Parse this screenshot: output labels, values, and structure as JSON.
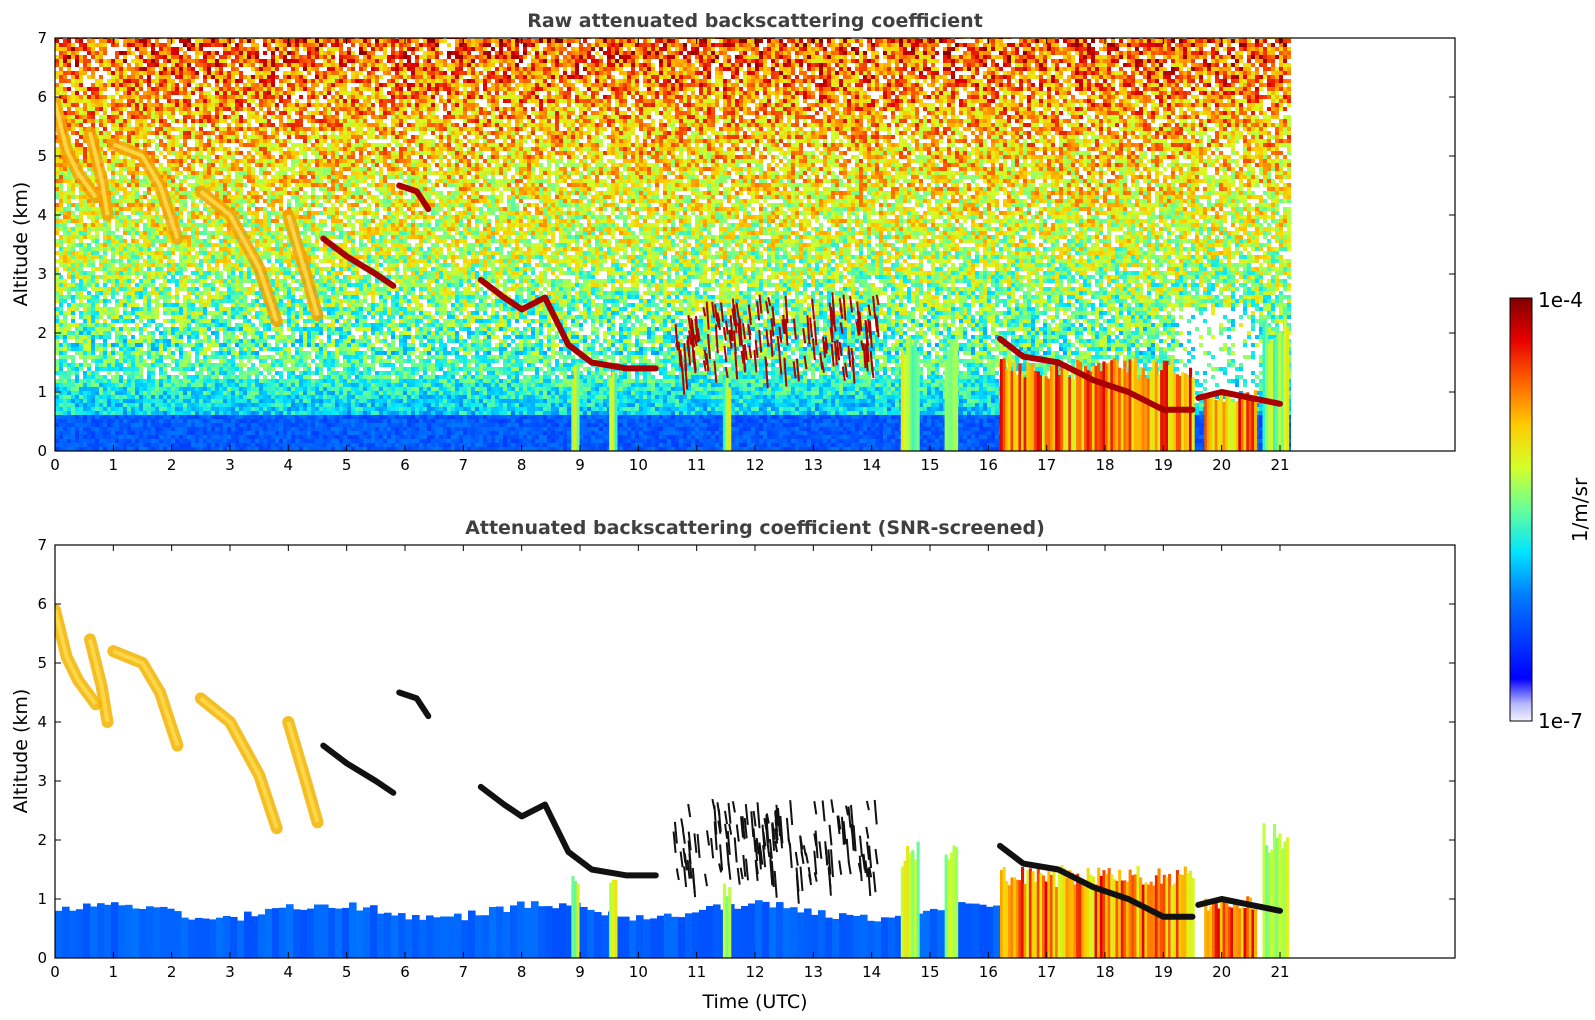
{
  "chart_data": [
    {
      "type": "heatmap",
      "title": "Raw attenuated backscattering coefficient",
      "xlabel": "",
      "ylabel": "Altitude (km)",
      "xlim": [
        0,
        24
      ],
      "ylim": [
        0,
        7
      ],
      "x_ticks": [
        "0",
        "1",
        "2",
        "3",
        "4",
        "5",
        "6",
        "7",
        "8",
        "9",
        "10",
        "11",
        "12",
        "13",
        "14",
        "15",
        "16",
        "17",
        "18",
        "19",
        "20",
        "21"
      ],
      "y_ticks": [
        "0",
        "1",
        "2",
        "3",
        "4",
        "5",
        "6",
        "7"
      ],
      "data_extent_hours": [
        0,
        21.15
      ],
      "screened": false
    },
    {
      "type": "heatmap",
      "title": "Attenuated backscattering coefficient (SNR-screened)",
      "xlabel": "Time (UTC)",
      "ylabel": "Altitude (km)",
      "xlim": [
        0,
        24
      ],
      "ylim": [
        0,
        7
      ],
      "x_ticks": [
        "0",
        "1",
        "2",
        "3",
        "4",
        "5",
        "6",
        "7",
        "8",
        "9",
        "10",
        "11",
        "12",
        "13",
        "14",
        "15",
        "16",
        "17",
        "18",
        "19",
        "20",
        "21"
      ],
      "y_ticks": [
        "0",
        "1",
        "2",
        "3",
        "4",
        "5",
        "6",
        "7"
      ],
      "data_extent_hours": [
        0,
        21.15
      ],
      "screened": true
    }
  ],
  "colorbar": {
    "label": "1/m/sr",
    "min_label": "1e-7",
    "max_label": "1e-4",
    "colormap": "jet",
    "scale": "log"
  },
  "features": {
    "cirrus_tracks": [
      [
        [
          0.0,
          5.9
        ],
        [
          0.2,
          5.1
        ],
        [
          0.4,
          4.7
        ],
        [
          0.7,
          4.3
        ]
      ],
      [
        [
          0.6,
          5.4
        ],
        [
          0.8,
          4.6
        ],
        [
          0.9,
          4.0
        ]
      ],
      [
        [
          1.0,
          5.2
        ],
        [
          1.5,
          5.0
        ],
        [
          1.8,
          4.5
        ],
        [
          2.1,
          3.6
        ]
      ],
      [
        [
          2.5,
          4.4
        ],
        [
          3.0,
          4.0
        ],
        [
          3.5,
          3.1
        ],
        [
          3.8,
          2.2
        ]
      ],
      [
        [
          4.0,
          4.0
        ],
        [
          4.3,
          3.0
        ],
        [
          4.5,
          2.3
        ]
      ]
    ],
    "dense_layers": [
      [
        [
          4.6,
          3.6
        ],
        [
          5.0,
          3.3
        ],
        [
          5.5,
          3.0
        ],
        [
          5.8,
          2.8
        ]
      ],
      [
        [
          5.9,
          4.5
        ],
        [
          6.2,
          4.4
        ],
        [
          6.4,
          4.1
        ]
      ],
      [
        [
          7.3,
          2.9
        ],
        [
          7.7,
          2.6
        ],
        [
          8.0,
          2.4
        ],
        [
          8.4,
          2.6
        ]
      ],
      [
        [
          8.4,
          2.6
        ],
        [
          8.8,
          1.8
        ],
        [
          9.2,
          1.5
        ],
        [
          9.8,
          1.4
        ],
        [
          10.3,
          1.4
        ]
      ],
      [
        [
          16.2,
          1.9
        ],
        [
          16.6,
          1.6
        ],
        [
          17.2,
          1.5
        ],
        [
          17.8,
          1.2
        ],
        [
          18.4,
          1.0
        ],
        [
          19.0,
          0.7
        ],
        [
          19.5,
          0.7
        ]
      ],
      [
        [
          19.6,
          0.9
        ],
        [
          20.0,
          1.0
        ],
        [
          20.5,
          0.9
        ],
        [
          21.0,
          0.8
        ]
      ]
    ],
    "cloud_columns": [
      [
        8.85,
        8.95,
        1.5
      ],
      [
        9.5,
        9.62,
        1.4
      ],
      [
        11.45,
        11.55,
        1.3
      ],
      [
        14.5,
        14.8,
        1.9
      ],
      [
        15.25,
        15.45,
        1.9
      ],
      [
        16.2,
        19.5,
        1.5
      ],
      [
        19.7,
        20.6,
        1.0
      ],
      [
        20.7,
        21.15,
        2.2
      ]
    ],
    "scattered_cells_window": [
      10.6,
      14.1,
      1.4,
      2.7
    ]
  }
}
